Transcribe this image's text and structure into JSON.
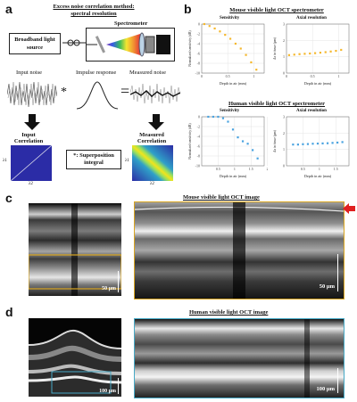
{
  "panels": {
    "a": {
      "label": "a",
      "title_line1": "Excess noise correlation method:",
      "title_line2": "spectral resolution",
      "source_box": "Broadband light source",
      "spectrometer": "Spectrometer",
      "input_noise": "Input noise",
      "impulse_response": "Impulse response",
      "measured_noise": "Measured noise",
      "input_corr": "Input Correlation",
      "measured_corr": "Measured Correlation",
      "superposition": "*: Superposition integral",
      "axis_l1": "λ1",
      "axis_l2": "λ2",
      "op_star": "*",
      "op_eq": "="
    },
    "b": {
      "label": "b",
      "mouse_title": "Mouse visible light OCT spectrometer",
      "human_title": "Human visible light OCT spectrometer",
      "sensitivity": "Sensitivity",
      "axial_res": "Axial resolution",
      "xlabel": "Depth in air (mm)",
      "ylabel_sens": "Normalized sensitivity (dB)",
      "ylabel_res": "Δz in tissue (μm)"
    },
    "c": {
      "label": "c",
      "title": "Mouse visible light OCT image",
      "scale_left": "50 μm",
      "scale_right": "50 μm"
    },
    "d": {
      "label": "d",
      "title": "Human visible light OCT image",
      "scale_left": "100 μm",
      "scale_right": "100 μm"
    }
  },
  "colors": {
    "mouse_points": "#f5b82e",
    "human_points": "#4aa3e0",
    "gold_frame": "#d9a520",
    "teal_frame": "#46a9c6",
    "arrow": "#e02020"
  },
  "chart_data": [
    {
      "type": "scatter",
      "title": "Sensitivity",
      "panel": "mouse",
      "xlabel": "Depth in air (mm)",
      "ylabel": "Normalized sensitivity (dB)",
      "xlim": [
        0,
        1.2
      ],
      "ylim": [
        -10,
        0
      ],
      "x_ticks": [
        "0",
        "0.5",
        "1"
      ],
      "y_ticks": [
        "0",
        "-2",
        "-4",
        "-6",
        "-8",
        "-10"
      ],
      "x": [
        0.05,
        0.15,
        0.25,
        0.35,
        0.45,
        0.55,
        0.65,
        0.75,
        0.85,
        0.95,
        1.05
      ],
      "y": [
        0,
        -0.4,
        -0.9,
        -1.5,
        -2.2,
        -3.0,
        -4.0,
        -5.0,
        -6.3,
        -7.8,
        -9.3
      ]
    },
    {
      "type": "scatter",
      "title": "Axial resolution",
      "panel": "mouse",
      "xlabel": "Depth in air (mm)",
      "ylabel": "Δz in tissue (μm)",
      "xlim": [
        0,
        1.2
      ],
      "ylim": [
        0,
        3
      ],
      "x_ticks": [
        "0",
        "0.5",
        "1"
      ],
      "y_ticks": [
        "0",
        "1",
        "2",
        "3"
      ],
      "x": [
        0.05,
        0.15,
        0.25,
        0.35,
        0.45,
        0.55,
        0.65,
        0.75,
        0.85,
        0.95,
        1.05
      ],
      "y": [
        1.1,
        1.13,
        1.16,
        1.18,
        1.2,
        1.22,
        1.25,
        1.28,
        1.32,
        1.36,
        1.42
      ]
    },
    {
      "type": "scatter",
      "title": "Sensitivity",
      "panel": "human",
      "xlabel": "Depth in air (mm)",
      "ylabel": "Normalized sensitivity (dB)",
      "xlim": [
        0,
        1.9
      ],
      "ylim": [
        -10,
        0
      ],
      "x_ticks": [
        "0.5",
        "1",
        "1.5",
        "2"
      ],
      "y_ticks": [
        "0",
        "-2",
        "-4",
        "-6",
        "-8",
        "-10"
      ],
      "x": [
        0.2,
        0.35,
        0.5,
        0.65,
        0.8,
        0.95,
        1.1,
        1.25,
        1.4,
        1.55,
        1.7
      ],
      "y": [
        0,
        0,
        0,
        -0.3,
        -1.0,
        -2.6,
        -4.2,
        -5.0,
        -5.5,
        -6.8,
        -8.5
      ]
    },
    {
      "type": "scatter",
      "title": "Axial resolution",
      "panel": "human",
      "xlabel": "Depth in air (mm)",
      "ylabel": "Δz in tissue (μm)",
      "xlim": [
        0,
        1.9
      ],
      "ylim": [
        0,
        3
      ],
      "x_ticks": [
        "0.5",
        "1",
        "1.5"
      ],
      "y_ticks": [
        "0",
        "1",
        "2",
        "3"
      ],
      "x": [
        0.2,
        0.35,
        0.5,
        0.65,
        0.8,
        0.95,
        1.1,
        1.25,
        1.4,
        1.55,
        1.7
      ],
      "y": [
        1.3,
        1.3,
        1.32,
        1.33,
        1.35,
        1.36,
        1.37,
        1.38,
        1.4,
        1.42,
        1.45
      ]
    }
  ]
}
